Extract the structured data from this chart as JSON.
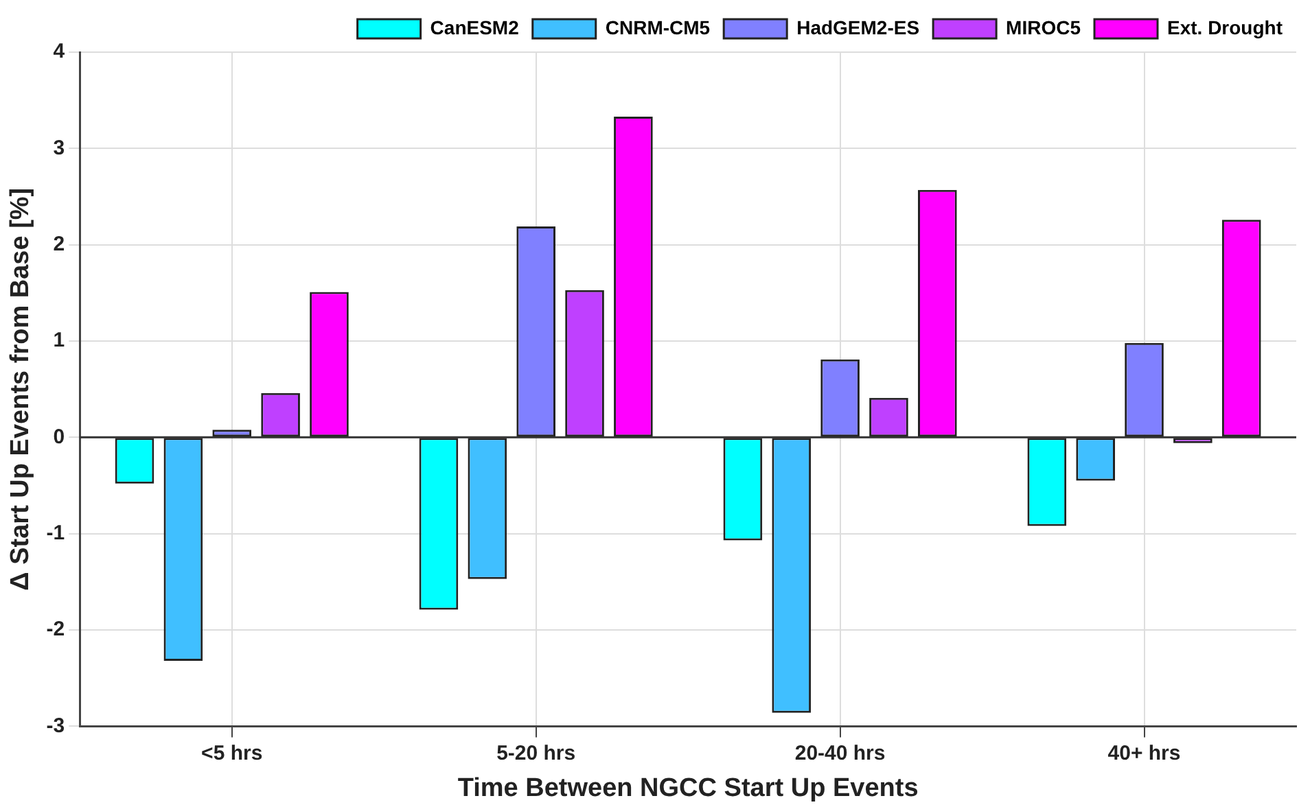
{
  "chart_data": {
    "type": "bar",
    "xlabel": "Time Between NGCC Start Up Events",
    "ylabel": "Δ Start Up Events from Base [%]",
    "categories": [
      "<5 hrs",
      "5-20 hrs",
      "20-40 hrs",
      "40+ hrs"
    ],
    "series": [
      {
        "name": "CanESM2",
        "color": "#00ffff",
        "values": [
          -0.48,
          -1.79,
          -1.07,
          -0.92
        ]
      },
      {
        "name": "CNRM-CM5",
        "color": "#40bfff",
        "values": [
          -2.32,
          -1.47,
          -2.86,
          -0.45
        ]
      },
      {
        "name": "HadGEM2-ES",
        "color": "#8080ff",
        "values": [
          0.08,
          2.19,
          0.81,
          0.98
        ]
      },
      {
        "name": "MIROC5",
        "color": "#bf40ff",
        "values": [
          0.46,
          1.53,
          0.41,
          -0.06
        ]
      },
      {
        "name": "Ext. Drought",
        "color": "#ff00ff",
        "values": [
          1.51,
          3.33,
          2.57,
          2.26
        ]
      }
    ],
    "ylim": [
      -3,
      4
    ],
    "yticks": [
      -3,
      -2,
      -1,
      0,
      1,
      2,
      3,
      4
    ],
    "grid": true,
    "legend": "top"
  }
}
